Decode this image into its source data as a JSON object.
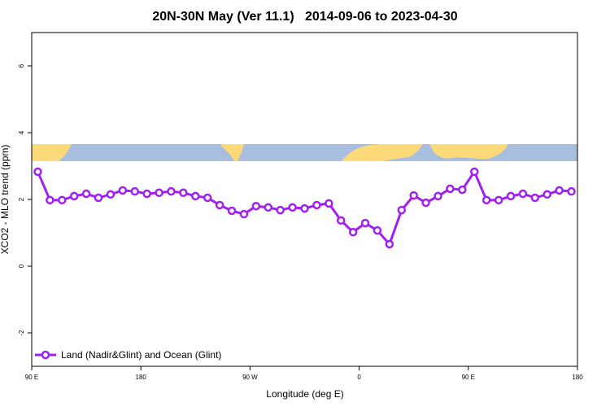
{
  "chart_data": {
    "type": "line",
    "title": "20N-30N May (Ver 11.1)   2014-09-06 to 2023-04-30",
    "xlabel": "Longitude (deg E)",
    "ylabel": "XCO2 - MLO trend (ppm)",
    "xlim": [
      90,
      540
    ],
    "ylim": [
      -3,
      7
    ],
    "xticks": [
      {
        "value": 90,
        "label": "90 E"
      },
      {
        "value": 180,
        "label": "180"
      },
      {
        "value": 270,
        "label": "90 W"
      },
      {
        "value": 360,
        "label": "0"
      },
      {
        "value": 450,
        "label": "90 E"
      },
      {
        "value": 540,
        "label": "180"
      }
    ],
    "yticks": [
      -2,
      0,
      2,
      4,
      6
    ],
    "legend": "bottom-left",
    "x": [
      95,
      105,
      115,
      125,
      135,
      145,
      155,
      165,
      175,
      185,
      195,
      205,
      215,
      225,
      235,
      245,
      255,
      265,
      275,
      285,
      295,
      305,
      315,
      325,
      335,
      345,
      355,
      365,
      375,
      385,
      395,
      405,
      415,
      425,
      435,
      445,
      455,
      465,
      475,
      485,
      495,
      505,
      515,
      525,
      535
    ],
    "series": [
      {
        "name": "Land (Nadir&Glint) and Ocean (Glint)",
        "color": "#a020f0",
        "values": [
          2.83,
          1.98,
          1.98,
          2.1,
          2.17,
          2.05,
          2.15,
          2.27,
          2.24,
          2.17,
          2.2,
          2.24,
          2.2,
          2.1,
          2.05,
          1.83,
          1.66,
          1.56,
          1.8,
          1.76,
          1.68,
          1.76,
          1.73,
          1.83,
          1.88,
          1.37,
          1.02,
          1.29,
          1.07,
          0.66,
          1.68,
          2.12,
          1.9,
          2.1,
          2.32,
          2.29,
          2.83,
          1.98,
          1.98,
          2.1,
          2.17,
          2.05,
          2.15,
          2.27,
          2.24
        ]
      }
    ]
  }
}
